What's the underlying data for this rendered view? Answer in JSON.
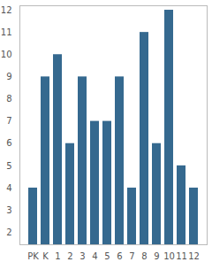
{
  "chart_data": {
    "type": "bar",
    "categories": [
      "PK",
      "K",
      "1",
      "2",
      "3",
      "4",
      "5",
      "6",
      "7",
      "8",
      "9",
      "10",
      "11",
      "12"
    ],
    "values": [
      4,
      9,
      10,
      6,
      9,
      7,
      7,
      9,
      4,
      11,
      6,
      12,
      5,
      4
    ],
    "color": "#35698f",
    "ylim": [
      1.45,
      12.2
    ],
    "yticks": [
      2,
      3,
      4,
      5,
      6,
      7,
      8,
      9,
      10,
      11,
      12
    ],
    "grid": false
  }
}
